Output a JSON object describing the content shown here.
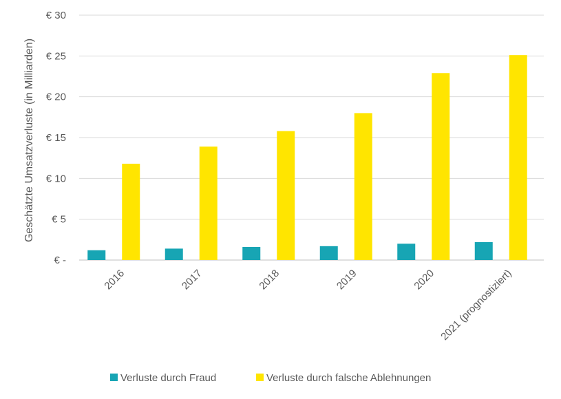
{
  "chart_data": {
    "type": "bar",
    "title": "",
    "xlabel": "",
    "ylabel": "Geschätzte Umsatzverluste (in Milliarden)",
    "categories": [
      "2016",
      "2017",
      "2018",
      "2019",
      "2020",
      "2021 (prognostiziert)"
    ],
    "series": [
      {
        "name": "Verluste durch Fraud",
        "color": "#17a5b4",
        "values": [
          1.2,
          1.4,
          1.6,
          1.7,
          2.0,
          2.2
        ]
      },
      {
        "name": "Verluste durch falsche Ablehnungen",
        "color": "#ffe500",
        "values": [
          11.8,
          13.9,
          15.8,
          18.0,
          22.9,
          25.1
        ]
      }
    ],
    "ylim": [
      0,
      30
    ],
    "yticks": [
      0,
      5,
      10,
      15,
      20,
      25,
      30
    ],
    "ytick_labels": [
      "€ -",
      "€ 5",
      "€ 10",
      "€ 15",
      "€ 20",
      "€ 25",
      "€ 30"
    ],
    "grid": true,
    "legend_position": "bottom",
    "gridline_color": "#d9d9d9"
  }
}
